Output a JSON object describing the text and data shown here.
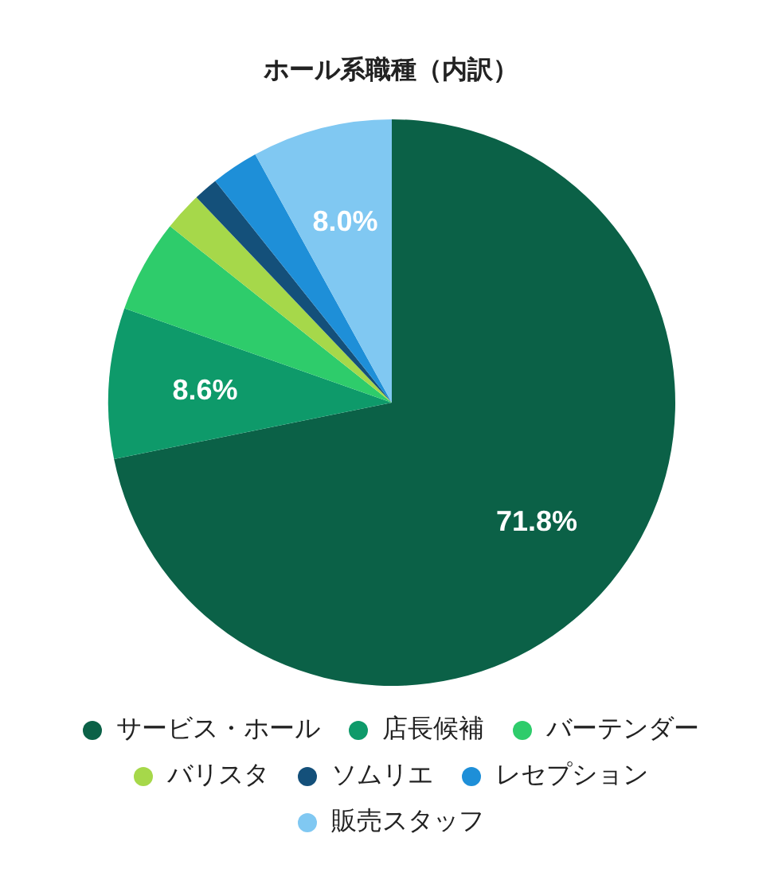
{
  "chart_data": {
    "type": "pie",
    "title": "ホール系職種（内訳）",
    "categories": [
      "サービス・ホール",
      "店長候補",
      "バーテンダー",
      "バリスタ",
      "ソムリエ",
      "レセプション",
      "販売スタッフ"
    ],
    "values": [
      71.8,
      8.6,
      5.3,
      2.2,
      1.4,
      2.7,
      8.0
    ],
    "colors": [
      "#0b6147",
      "#0e9a6a",
      "#2ecc6b",
      "#a6d84a",
      "#14507a",
      "#1e8fd8",
      "#80c8f2"
    ],
    "value_labels": [
      "71.8%",
      "8.6%",
      null,
      null,
      null,
      null,
      "8.0%"
    ],
    "legend": "bottom"
  }
}
